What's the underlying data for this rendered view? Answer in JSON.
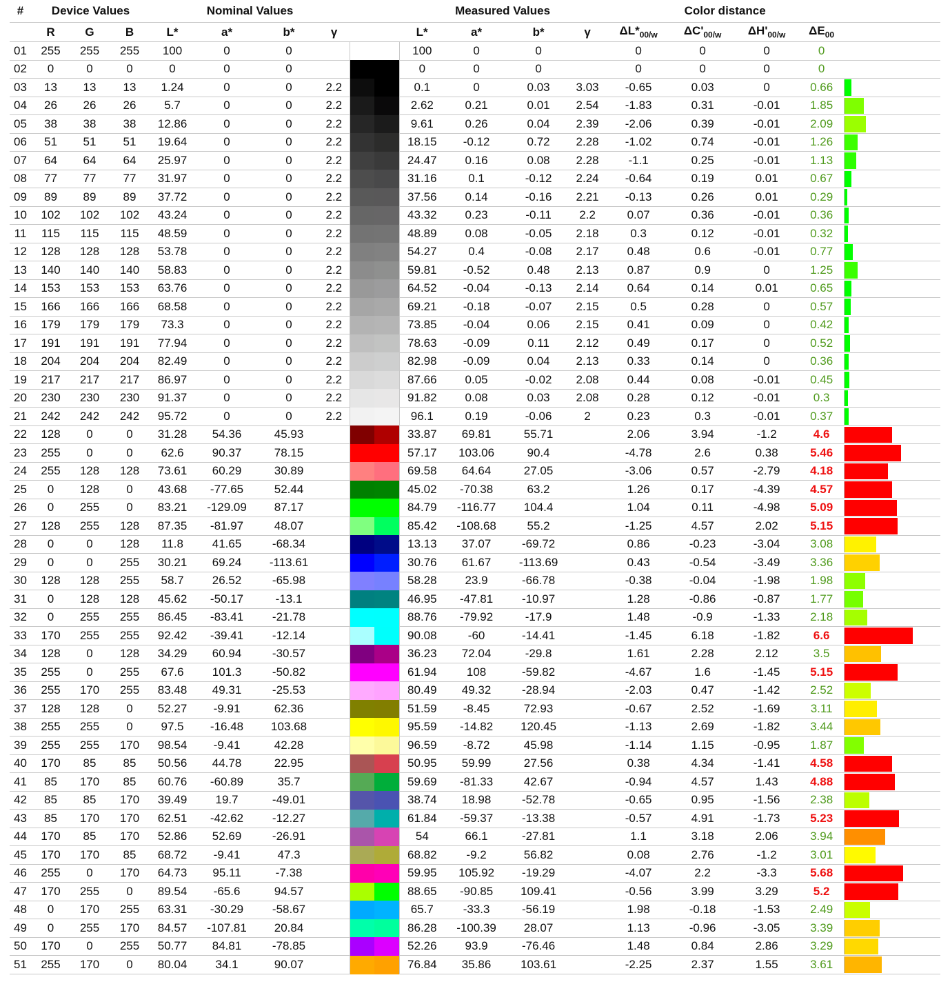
{
  "headers": {
    "group": {
      "num": "#",
      "device": "Device Values",
      "nominal": "Nominal Values",
      "measured": "Measured Values",
      "distance": "Color distance"
    },
    "cols": {
      "R": "R",
      "G": "G",
      "B": "B",
      "L": "L*",
      "a": "a*",
      "b": "b*",
      "gamma": "γ",
      "dL": "ΔL*",
      "dC": "ΔC'",
      "dH": "ΔH'",
      "dE": "ΔE",
      "sub_w": "00/w",
      "sub_e": "00"
    }
  },
  "colors": {
    "ok_text": "#4f9a1c",
    "bad_text": "#ee1111",
    "bad_bar": "#ff0000"
  },
  "columns": [
    "#",
    "R",
    "G",
    "B",
    "L*",
    "a*",
    "b*",
    "γ",
    "L*",
    "a*",
    "b*",
    "γ",
    "ΔL*00/w",
    "ΔC'00/w",
    "ΔH'00/w",
    "ΔE00"
  ],
  "rows": [
    [
      "01",
      "255",
      "255",
      "255",
      "100",
      "0",
      "0",
      "",
      "100",
      "0",
      "0",
      "",
      "0",
      "0",
      "0",
      "0"
    ],
    [
      "02",
      "0",
      "0",
      "0",
      "0",
      "0",
      "0",
      "",
      "0",
      "0",
      "0",
      "",
      "0",
      "0",
      "0",
      "0"
    ],
    [
      "03",
      "13",
      "13",
      "13",
      "1.24",
      "0",
      "0",
      "2.2",
      "0.1",
      "0",
      "0.03",
      "3.03",
      "-0.65",
      "0.03",
      "0",
      "0.66"
    ],
    [
      "04",
      "26",
      "26",
      "26",
      "5.7",
      "0",
      "0",
      "2.2",
      "2.62",
      "0.21",
      "0.01",
      "2.54",
      "-1.83",
      "0.31",
      "-0.01",
      "1.85"
    ],
    [
      "05",
      "38",
      "38",
      "38",
      "12.86",
      "0",
      "0",
      "2.2",
      "9.61",
      "0.26",
      "0.04",
      "2.39",
      "-2.06",
      "0.39",
      "-0.01",
      "2.09"
    ],
    [
      "06",
      "51",
      "51",
      "51",
      "19.64",
      "0",
      "0",
      "2.2",
      "18.15",
      "-0.12",
      "0.72",
      "2.28",
      "-1.02",
      "0.74",
      "-0.01",
      "1.26"
    ],
    [
      "07",
      "64",
      "64",
      "64",
      "25.97",
      "0",
      "0",
      "2.2",
      "24.47",
      "0.16",
      "0.08",
      "2.28",
      "-1.1",
      "0.25",
      "-0.01",
      "1.13"
    ],
    [
      "08",
      "77",
      "77",
      "77",
      "31.97",
      "0",
      "0",
      "2.2",
      "31.16",
      "0.1",
      "-0.12",
      "2.24",
      "-0.64",
      "0.19",
      "0.01",
      "0.67"
    ],
    [
      "09",
      "89",
      "89",
      "89",
      "37.72",
      "0",
      "0",
      "2.2",
      "37.56",
      "0.14",
      "-0.16",
      "2.21",
      "-0.13",
      "0.26",
      "0.01",
      "0.29"
    ],
    [
      "10",
      "102",
      "102",
      "102",
      "43.24",
      "0",
      "0",
      "2.2",
      "43.32",
      "0.23",
      "-0.11",
      "2.2",
      "0.07",
      "0.36",
      "-0.01",
      "0.36"
    ],
    [
      "11",
      "115",
      "115",
      "115",
      "48.59",
      "0",
      "0",
      "2.2",
      "48.89",
      "0.08",
      "-0.05",
      "2.18",
      "0.3",
      "0.12",
      "-0.01",
      "0.32"
    ],
    [
      "12",
      "128",
      "128",
      "128",
      "53.78",
      "0",
      "0",
      "2.2",
      "54.27",
      "0.4",
      "-0.08",
      "2.17",
      "0.48",
      "0.6",
      "-0.01",
      "0.77"
    ],
    [
      "13",
      "140",
      "140",
      "140",
      "58.83",
      "0",
      "0",
      "2.2",
      "59.81",
      "-0.52",
      "0.48",
      "2.13",
      "0.87",
      "0.9",
      "0",
      "1.25"
    ],
    [
      "14",
      "153",
      "153",
      "153",
      "63.76",
      "0",
      "0",
      "2.2",
      "64.52",
      "-0.04",
      "-0.13",
      "2.14",
      "0.64",
      "0.14",
      "0.01",
      "0.65"
    ],
    [
      "15",
      "166",
      "166",
      "166",
      "68.58",
      "0",
      "0",
      "2.2",
      "69.21",
      "-0.18",
      "-0.07",
      "2.15",
      "0.5",
      "0.28",
      "0",
      "0.57"
    ],
    [
      "16",
      "179",
      "179",
      "179",
      "73.3",
      "0",
      "0",
      "2.2",
      "73.85",
      "-0.04",
      "0.06",
      "2.15",
      "0.41",
      "0.09",
      "0",
      "0.42"
    ],
    [
      "17",
      "191",
      "191",
      "191",
      "77.94",
      "0",
      "0",
      "2.2",
      "78.63",
      "-0.09",
      "0.11",
      "2.12",
      "0.49",
      "0.17",
      "0",
      "0.52"
    ],
    [
      "18",
      "204",
      "204",
      "204",
      "82.49",
      "0",
      "0",
      "2.2",
      "82.98",
      "-0.09",
      "0.04",
      "2.13",
      "0.33",
      "0.14",
      "0",
      "0.36"
    ],
    [
      "19",
      "217",
      "217",
      "217",
      "86.97",
      "0",
      "0",
      "2.2",
      "87.66",
      "0.05",
      "-0.02",
      "2.08",
      "0.44",
      "0.08",
      "-0.01",
      "0.45"
    ],
    [
      "20",
      "230",
      "230",
      "230",
      "91.37",
      "0",
      "0",
      "2.2",
      "91.82",
      "0.08",
      "0.03",
      "2.08",
      "0.28",
      "0.12",
      "-0.01",
      "0.3"
    ],
    [
      "21",
      "242",
      "242",
      "242",
      "95.72",
      "0",
      "0",
      "2.2",
      "96.1",
      "0.19",
      "-0.06",
      "2",
      "0.23",
      "0.3",
      "-0.01",
      "0.37"
    ],
    [
      "22",
      "128",
      "0",
      "0",
      "31.28",
      "54.36",
      "45.93",
      "",
      "33.87",
      "69.81",
      "55.71",
      "",
      "2.06",
      "3.94",
      "-1.2",
      "4.6"
    ],
    [
      "23",
      "255",
      "0",
      "0",
      "62.6",
      "90.37",
      "78.15",
      "",
      "57.17",
      "103.06",
      "90.4",
      "",
      "-4.78",
      "2.6",
      "0.38",
      "5.46"
    ],
    [
      "24",
      "255",
      "128",
      "128",
      "73.61",
      "60.29",
      "30.89",
      "",
      "69.58",
      "64.64",
      "27.05",
      "",
      "-3.06",
      "0.57",
      "-2.79",
      "4.18"
    ],
    [
      "25",
      "0",
      "128",
      "0",
      "43.68",
      "-77.65",
      "52.44",
      "",
      "45.02",
      "-70.38",
      "63.2",
      "",
      "1.26",
      "0.17",
      "-4.39",
      "4.57"
    ],
    [
      "26",
      "0",
      "255",
      "0",
      "83.21",
      "-129.09",
      "87.17",
      "",
      "84.79",
      "-116.77",
      "104.4",
      "",
      "1.04",
      "0.11",
      "-4.98",
      "5.09"
    ],
    [
      "27",
      "128",
      "255",
      "128",
      "87.35",
      "-81.97",
      "48.07",
      "",
      "85.42",
      "-108.68",
      "55.2",
      "",
      "-1.25",
      "4.57",
      "2.02",
      "5.15"
    ],
    [
      "28",
      "0",
      "0",
      "128",
      "11.8",
      "41.65",
      "-68.34",
      "",
      "13.13",
      "37.07",
      "-69.72",
      "",
      "0.86",
      "-0.23",
      "-3.04",
      "3.08"
    ],
    [
      "29",
      "0",
      "0",
      "255",
      "30.21",
      "69.24",
      "-113.61",
      "",
      "30.76",
      "61.67",
      "-113.69",
      "",
      "0.43",
      "-0.54",
      "-3.49",
      "3.36"
    ],
    [
      "30",
      "128",
      "128",
      "255",
      "58.7",
      "26.52",
      "-65.98",
      "",
      "58.28",
      "23.9",
      "-66.78",
      "",
      "-0.38",
      "-0.04",
      "-1.98",
      "1.98"
    ],
    [
      "31",
      "0",
      "128",
      "128",
      "45.62",
      "-50.17",
      "-13.1",
      "",
      "46.95",
      "-47.81",
      "-10.97",
      "",
      "1.28",
      "-0.86",
      "-0.87",
      "1.77"
    ],
    [
      "32",
      "0",
      "255",
      "255",
      "86.45",
      "-83.41",
      "-21.78",
      "",
      "88.76",
      "-79.92",
      "-17.9",
      "",
      "1.48",
      "-0.9",
      "-1.33",
      "2.18"
    ],
    [
      "33",
      "170",
      "255",
      "255",
      "92.42",
      "-39.41",
      "-12.14",
      "",
      "90.08",
      "-60",
      "-14.41",
      "",
      "-1.45",
      "6.18",
      "-1.82",
      "6.6"
    ],
    [
      "34",
      "128",
      "0",
      "128",
      "34.29",
      "60.94",
      "-30.57",
      "",
      "36.23",
      "72.04",
      "-29.8",
      "",
      "1.61",
      "2.28",
      "2.12",
      "3.5"
    ],
    [
      "35",
      "255",
      "0",
      "255",
      "67.6",
      "101.3",
      "-50.82",
      "",
      "61.94",
      "108",
      "-59.82",
      "",
      "-4.67",
      "1.6",
      "-1.45",
      "5.15"
    ],
    [
      "36",
      "255",
      "170",
      "255",
      "83.48",
      "49.31",
      "-25.53",
      "",
      "80.49",
      "49.32",
      "-28.94",
      "",
      "-2.03",
      "0.47",
      "-1.42",
      "2.52"
    ],
    [
      "37",
      "128",
      "128",
      "0",
      "52.27",
      "-9.91",
      "62.36",
      "",
      "51.59",
      "-8.45",
      "72.93",
      "",
      "-0.67",
      "2.52",
      "-1.69",
      "3.11"
    ],
    [
      "38",
      "255",
      "255",
      "0",
      "97.5",
      "-16.48",
      "103.68",
      "",
      "95.59",
      "-14.82",
      "120.45",
      "",
      "-1.13",
      "2.69",
      "-1.82",
      "3.44"
    ],
    [
      "39",
      "255",
      "255",
      "170",
      "98.54",
      "-9.41",
      "42.28",
      "",
      "96.59",
      "-8.72",
      "45.98",
      "",
      "-1.14",
      "1.15",
      "-0.95",
      "1.87"
    ],
    [
      "40",
      "170",
      "85",
      "85",
      "50.56",
      "44.78",
      "22.95",
      "",
      "50.95",
      "59.99",
      "27.56",
      "",
      "0.38",
      "4.34",
      "-1.41",
      "4.58"
    ],
    [
      "41",
      "85",
      "170",
      "85",
      "60.76",
      "-60.89",
      "35.7",
      "",
      "59.69",
      "-81.33",
      "42.67",
      "",
      "-0.94",
      "4.57",
      "1.43",
      "4.88"
    ],
    [
      "42",
      "85",
      "85",
      "170",
      "39.49",
      "19.7",
      "-49.01",
      "",
      "38.74",
      "18.98",
      "-52.78",
      "",
      "-0.65",
      "0.95",
      "-1.56",
      "2.38"
    ],
    [
      "43",
      "85",
      "170",
      "170",
      "62.51",
      "-42.62",
      "-12.27",
      "",
      "61.84",
      "-59.37",
      "-13.38",
      "",
      "-0.57",
      "4.91",
      "-1.73",
      "5.23"
    ],
    [
      "44",
      "170",
      "85",
      "170",
      "52.86",
      "52.69",
      "-26.91",
      "",
      "54",
      "66.1",
      "-27.81",
      "",
      "1.1",
      "3.18",
      "2.06",
      "3.94"
    ],
    [
      "45",
      "170",
      "170",
      "85",
      "68.72",
      "-9.41",
      "47.3",
      "",
      "68.82",
      "-9.2",
      "56.82",
      "",
      "0.08",
      "2.76",
      "-1.2",
      "3.01"
    ],
    [
      "46",
      "255",
      "0",
      "170",
      "64.73",
      "95.11",
      "-7.38",
      "",
      "59.95",
      "105.92",
      "-19.29",
      "",
      "-4.07",
      "2.2",
      "-3.3",
      "5.68"
    ],
    [
      "47",
      "170",
      "255",
      "0",
      "89.54",
      "-65.6",
      "94.57",
      "",
      "88.65",
      "-90.85",
      "109.41",
      "",
      "-0.56",
      "3.99",
      "3.29",
      "5.2"
    ],
    [
      "48",
      "0",
      "170",
      "255",
      "63.31",
      "-30.29",
      "-58.67",
      "",
      "65.7",
      "-33.3",
      "-56.19",
      "",
      "1.98",
      "-0.18",
      "-1.53",
      "2.49"
    ],
    [
      "49",
      "0",
      "255",
      "170",
      "84.57",
      "-107.81",
      "20.84",
      "",
      "86.28",
      "-100.39",
      "28.07",
      "",
      "1.13",
      "-0.96",
      "-3.05",
      "3.39"
    ],
    [
      "50",
      "170",
      "0",
      "255",
      "50.77",
      "84.81",
      "-78.85",
      "",
      "52.26",
      "93.9",
      "-76.46",
      "",
      "1.48",
      "0.84",
      "2.86",
      "3.29"
    ],
    [
      "51",
      "255",
      "170",
      "0",
      "80.04",
      "34.1",
      "90.07",
      "",
      "76.84",
      "35.86",
      "103.61",
      "",
      "-2.25",
      "2.37",
      "1.55",
      "3.61"
    ]
  ]
}
